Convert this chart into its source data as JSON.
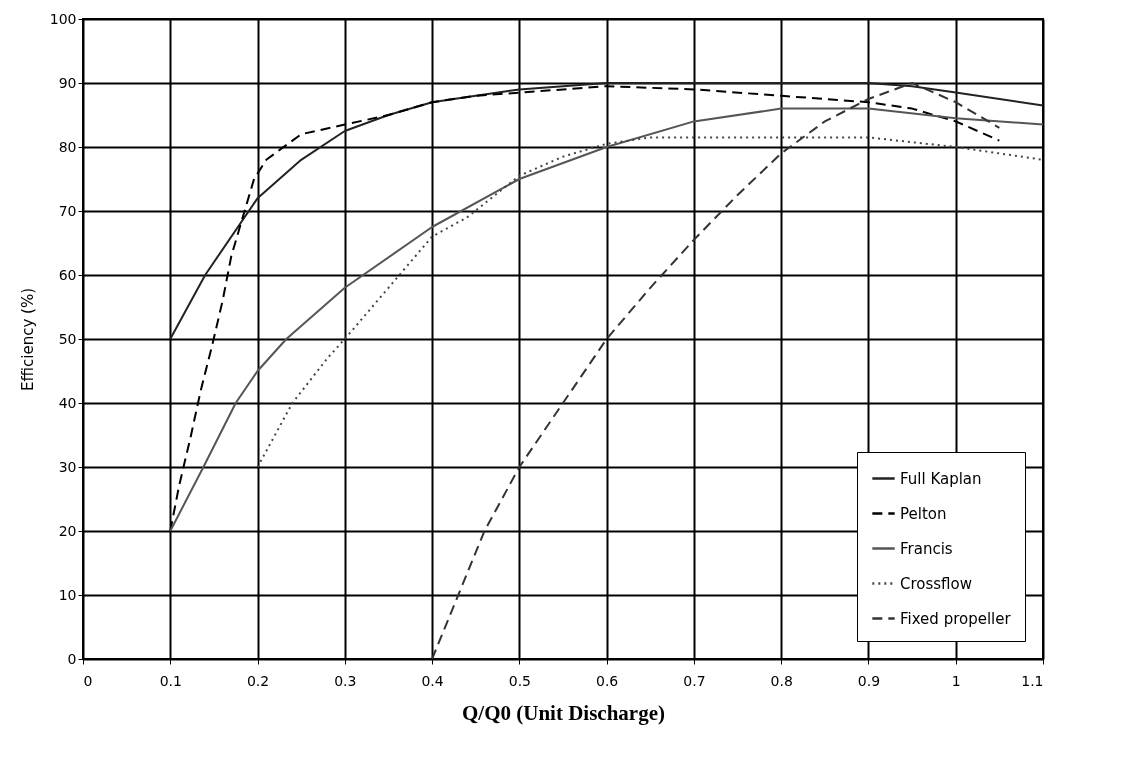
{
  "chart_data": {
    "type": "line",
    "xlabel": "Q/Q0 (Unit Discharge)",
    "ylabel": "Efficiency (%)",
    "xlim": [
      0,
      1.1
    ],
    "xticks": [
      0,
      0.1,
      0.2,
      0.3,
      0.4,
      0.5,
      0.6,
      0.7,
      0.8,
      0.9,
      1,
      1.1
    ],
    "ylim": [
      0,
      100
    ],
    "yticks": [
      0,
      10,
      20,
      30,
      40,
      50,
      60,
      70,
      80,
      90,
      100
    ],
    "grid": true,
    "legend": "bottom right",
    "series": [
      {
        "name": "Full Kaplan",
        "color": "#222222",
        "line_style": "solid",
        "x": [
          0.1,
          0.14,
          0.2,
          0.25,
          0.3,
          0.35,
          0.4,
          0.45,
          0.5,
          0.6,
          0.7,
          0.8,
          0.9,
          0.95,
          1.0,
          1.1
        ],
        "values": [
          50,
          60,
          72,
          78,
          82.5,
          85,
          87,
          88,
          89,
          90,
          90,
          90,
          90,
          89.5,
          88.5,
          86.5
        ]
      },
      {
        "name": "Pelton",
        "color": "#000000",
        "line_style": "dashed",
        "x": [
          0.1,
          0.11,
          0.123,
          0.135,
          0.148,
          0.16,
          0.17,
          0.183,
          0.196,
          0.21,
          0.25,
          0.3,
          0.35,
          0.4,
          0.45,
          0.5,
          0.6,
          0.7,
          0.8,
          0.9,
          0.95,
          1.0,
          1.05
        ],
        "values": [
          20,
          27,
          34.5,
          42,
          49,
          56,
          63,
          69,
          75,
          78,
          82,
          83.5,
          85,
          87,
          88,
          88.5,
          89.5,
          89,
          88,
          87,
          86,
          84,
          81
        ]
      },
      {
        "name": "Francis",
        "color": "#555555",
        "line_style": "solid",
        "x": [
          0.1,
          0.138,
          0.175,
          0.2,
          0.233,
          0.3,
          0.4,
          0.5,
          0.6,
          0.7,
          0.8,
          0.9,
          1.0,
          1.1
        ],
        "values": [
          20,
          30,
          40,
          45,
          50,
          58,
          67.5,
          75,
          80,
          84,
          86,
          86,
          84.5,
          83.5
        ]
      },
      {
        "name": "Crossflow",
        "color": "#444444",
        "line_style": "dotted",
        "x": [
          0.2,
          0.24,
          0.28,
          0.3,
          0.35,
          0.4,
          0.44,
          0.5,
          0.55,
          0.6,
          0.65,
          0.7,
          0.8,
          0.9,
          1.0,
          1.1
        ],
        "values": [
          30,
          40,
          47,
          50,
          58,
          66,
          69,
          75.5,
          78.5,
          80.5,
          81.5,
          81.5,
          81.5,
          81.5,
          80,
          78
        ]
      },
      {
        "name": "Fixed propeller",
        "color": "#333333",
        "line_style": "dashed",
        "x": [
          0.4,
          0.43,
          0.46,
          0.5,
          0.6,
          0.65,
          0.7,
          0.75,
          0.8,
          0.85,
          0.9,
          0.95,
          1.0,
          1.05
        ],
        "values": [
          0,
          10,
          20,
          30,
          50,
          58,
          65.5,
          72.5,
          79,
          84,
          87.5,
          90,
          87,
          83
        ]
      }
    ]
  }
}
